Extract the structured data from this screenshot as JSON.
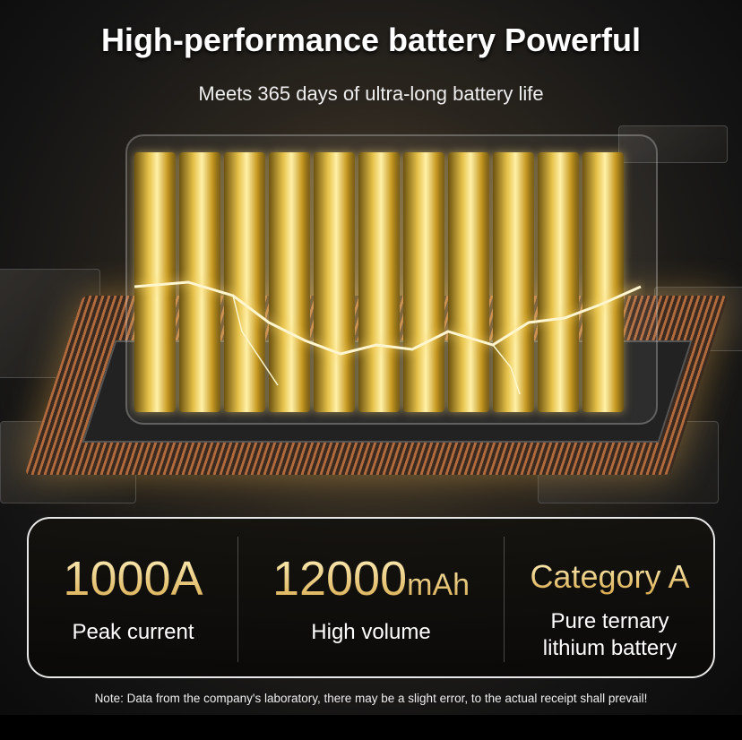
{
  "header": {
    "title": "High-performance battery Powerful",
    "subtitle": "Meets 365 days of ultra-long battery life"
  },
  "stats": [
    {
      "value": "1000A",
      "unit": "",
      "label": "Peak current"
    },
    {
      "value": "12000",
      "unit": "mAh",
      "label": "High volume"
    },
    {
      "value": "Category A",
      "unit": "",
      "label_line1": "Pure ternary",
      "label_line2": "lithium battery"
    }
  ],
  "note": "Note: Data from the company's laboratory, there may be a slight error, to the actual receipt shall prevail!",
  "colors": {
    "gold": "#e9c86a",
    "background": "#141414",
    "panel_border": "#e8e8e8"
  }
}
